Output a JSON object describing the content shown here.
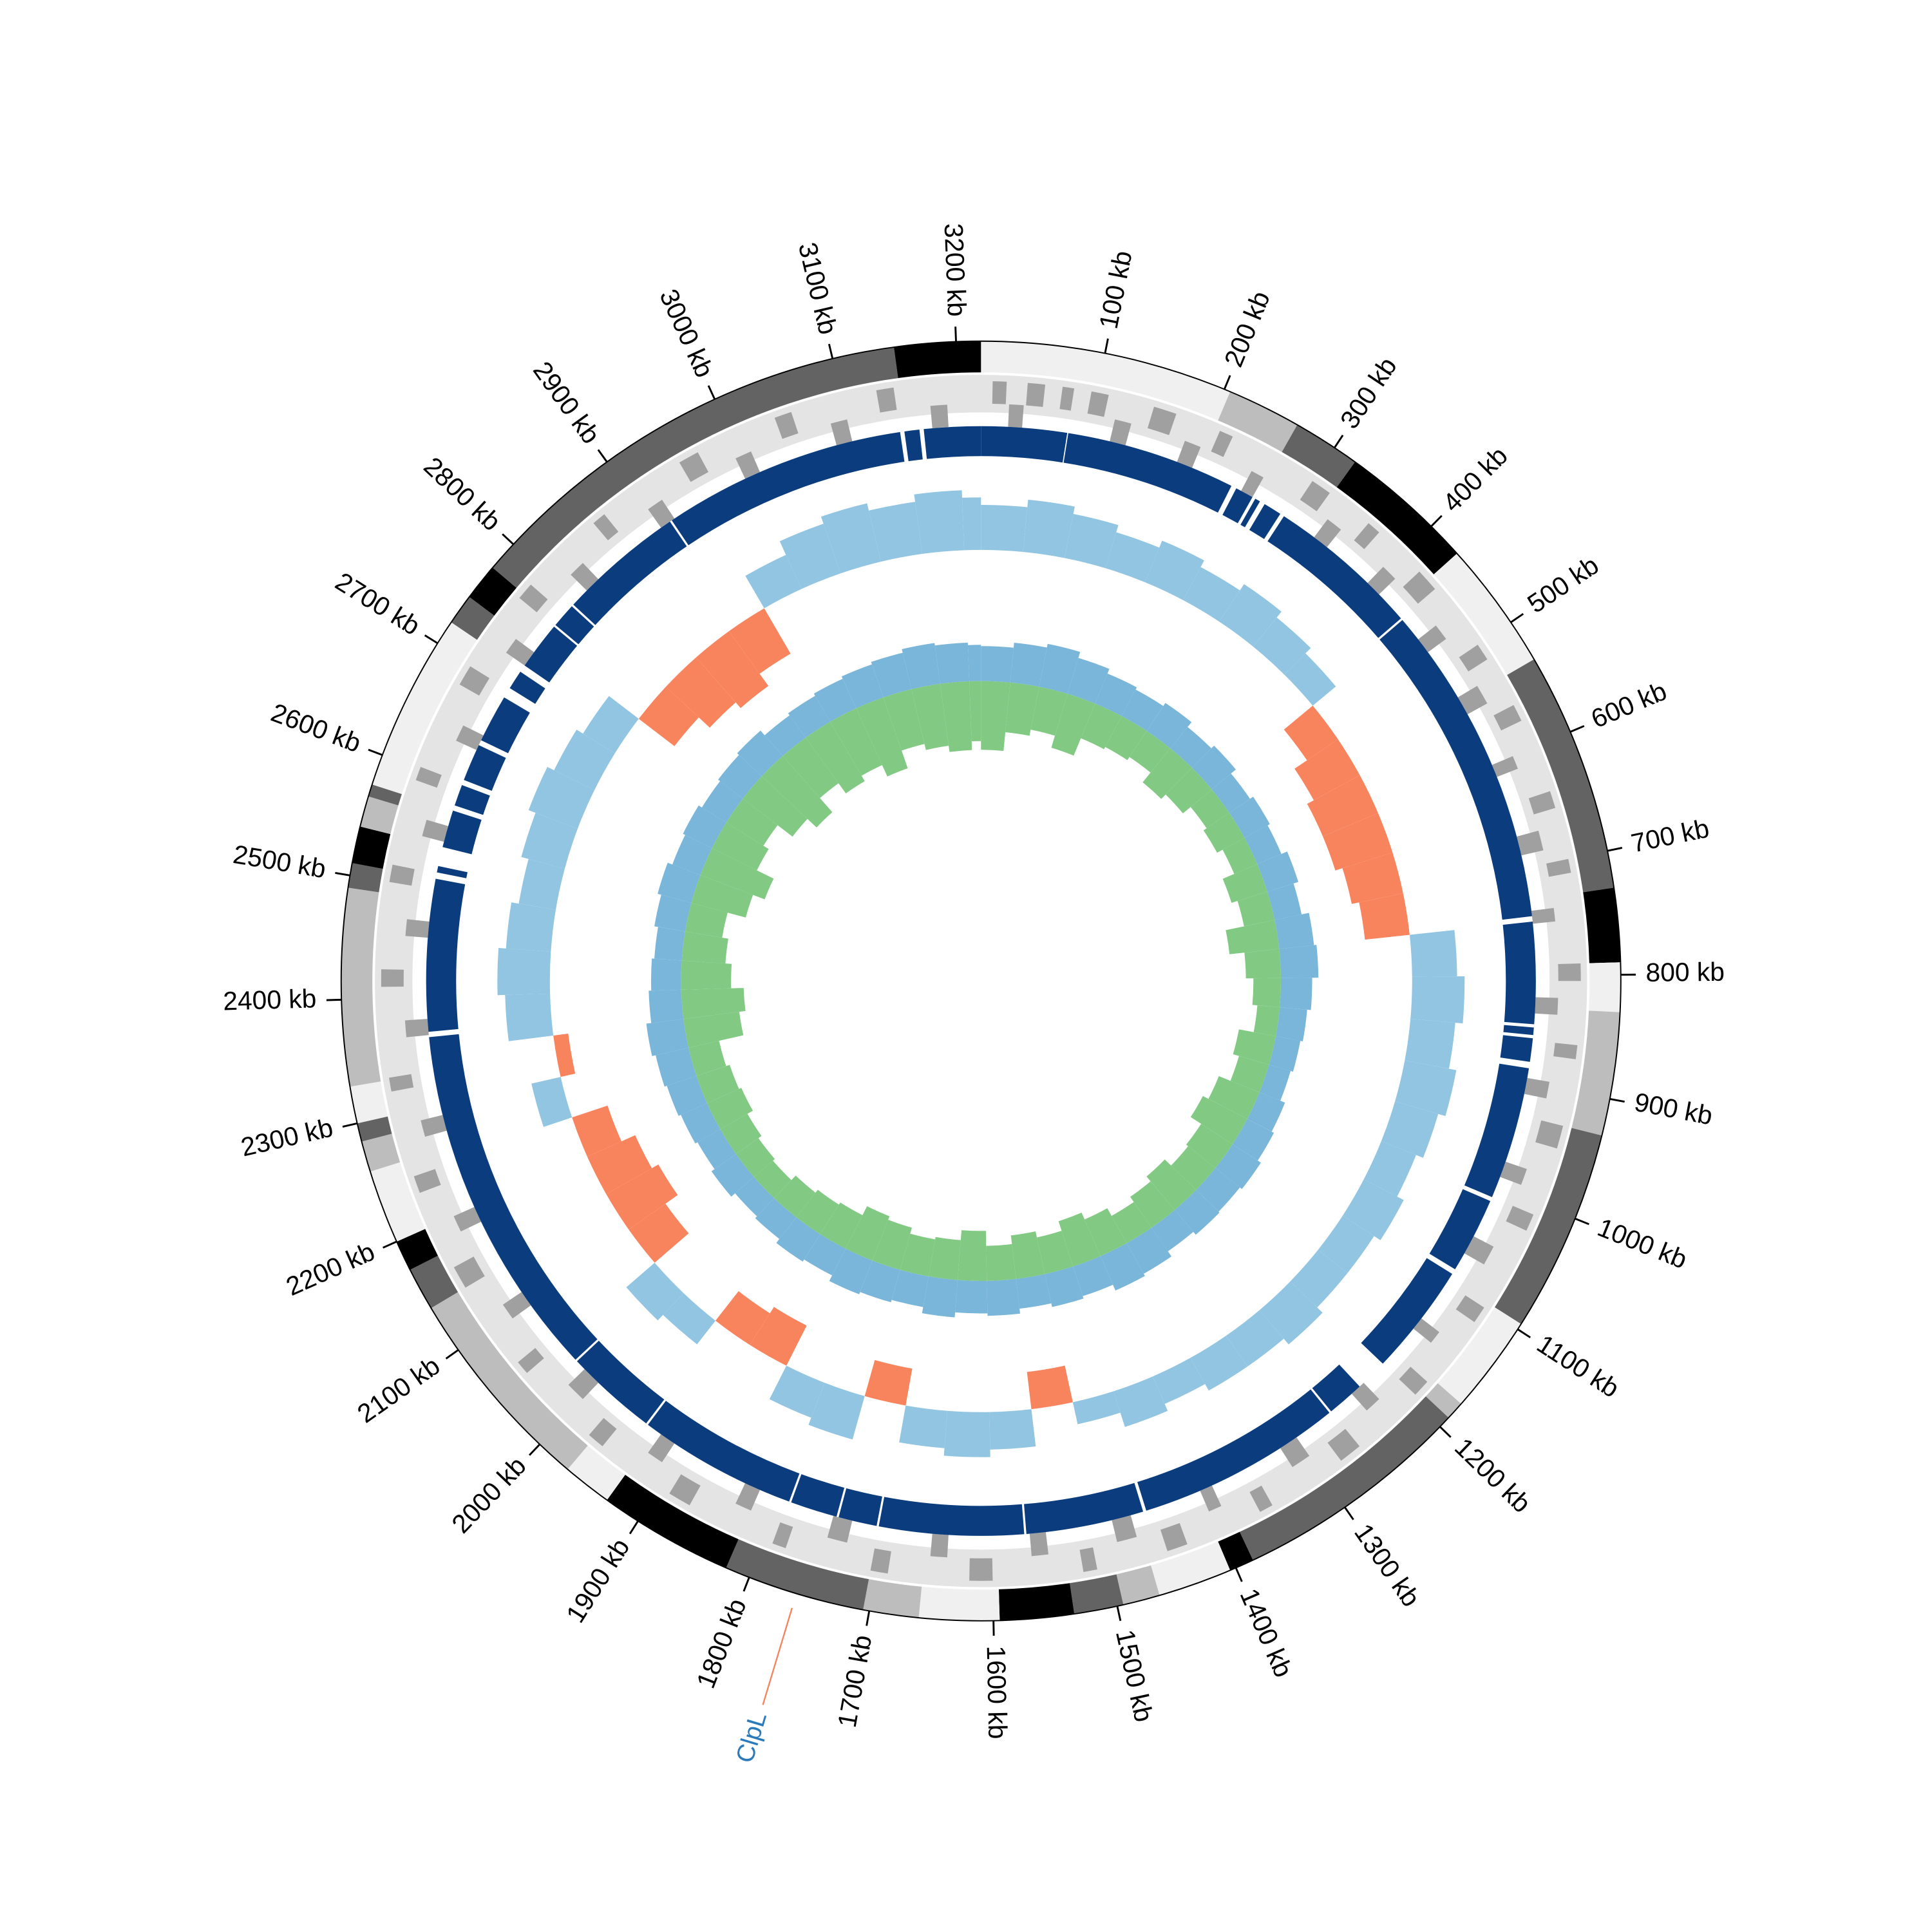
{
  "chart_data": {
    "type": "circos",
    "xlim": [
      0,
      3220
    ],
    "xticks": [
      {
        "value": 100,
        "label": "100 kb"
      },
      {
        "value": 200,
        "label": "200 kb"
      },
      {
        "value": 300,
        "label": "300 kb"
      },
      {
        "value": 400,
        "label": "400 kb"
      },
      {
        "value": 500,
        "label": "500 kb"
      },
      {
        "value": 600,
        "label": "600 kb"
      },
      {
        "value": 700,
        "label": "700 kb"
      },
      {
        "value": 800,
        "label": "800 kb"
      },
      {
        "value": 900,
        "label": "900 kb"
      },
      {
        "value": 1000,
        "label": "1000 kb"
      },
      {
        "value": 1100,
        "label": "1100 kb"
      },
      {
        "value": 1200,
        "label": "1200 kb"
      },
      {
        "value": 1300,
        "label": "1300 kb"
      },
      {
        "value": 1400,
        "label": "1400 kb"
      },
      {
        "value": 1500,
        "label": "1500 kb"
      },
      {
        "value": 1600,
        "label": "1600 kb"
      },
      {
        "value": 1700,
        "label": "1700 kb"
      },
      {
        "value": 1800,
        "label": "1800 kb"
      },
      {
        "value": 1900,
        "label": "1900 kb"
      },
      {
        "value": 2000,
        "label": "2000 kb"
      },
      {
        "value": 2100,
        "label": "2100 kb"
      },
      {
        "value": 2200,
        "label": "2200 kb"
      },
      {
        "value": 2300,
        "label": "2300 kb"
      },
      {
        "value": 2400,
        "label": "2400 kb"
      },
      {
        "value": 2500,
        "label": "2500 kb"
      },
      {
        "value": 2600,
        "label": "2600 kb"
      },
      {
        "value": 2700,
        "label": "2700 kb"
      },
      {
        "value": 2800,
        "label": "2800 kb"
      },
      {
        "value": 2900,
        "label": "2900 kb"
      },
      {
        "value": 3000,
        "label": "3000 kb"
      },
      {
        "value": 3100,
        "label": "3100 kb"
      },
      {
        "value": 3200,
        "label": "3200 kb"
      }
    ],
    "bands": [
      {
        "start": 0,
        "end": 205,
        "color": "#f0f0f0"
      },
      {
        "start": 205,
        "end": 265,
        "color": "#bdbdbd"
      },
      {
        "start": 265,
        "end": 320,
        "color": "#636363"
      },
      {
        "start": 320,
        "end": 430,
        "color": "#000000"
      },
      {
        "start": 430,
        "end": 535,
        "color": "#f0f0f0"
      },
      {
        "start": 535,
        "end": 730,
        "color": "#636363"
      },
      {
        "start": 730,
        "end": 790,
        "color": "#000000"
      },
      {
        "start": 790,
        "end": 830,
        "color": "#f0f0f0"
      },
      {
        "start": 830,
        "end": 930,
        "color": "#bdbdbd"
      },
      {
        "start": 930,
        "end": 1095,
        "color": "#636363"
      },
      {
        "start": 1095,
        "end": 1175,
        "color": "#f0f0f0"
      },
      {
        "start": 1175,
        "end": 1190,
        "color": "#bdbdbd"
      },
      {
        "start": 1190,
        "end": 1385,
        "color": "#636363"
      },
      {
        "start": 1385,
        "end": 1405,
        "color": "#000000"
      },
      {
        "start": 1405,
        "end": 1465,
        "color": "#f0f0f0"
      },
      {
        "start": 1465,
        "end": 1495,
        "color": "#bdbdbd"
      },
      {
        "start": 1495,
        "end": 1535,
        "color": "#636363"
      },
      {
        "start": 1535,
        "end": 1595,
        "color": "#000000"
      },
      {
        "start": 1595,
        "end": 1660,
        "color": "#f0f0f0"
      },
      {
        "start": 1660,
        "end": 1705,
        "color": "#bdbdbd"
      },
      {
        "start": 1705,
        "end": 1820,
        "color": "#636363"
      },
      {
        "start": 1820,
        "end": 1930,
        "color": "#000000"
      },
      {
        "start": 1930,
        "end": 1970,
        "color": "#f0f0f0"
      },
      {
        "start": 1970,
        "end": 2140,
        "color": "#bdbdbd"
      },
      {
        "start": 2140,
        "end": 2175,
        "color": "#636363"
      },
      {
        "start": 2175,
        "end": 2200,
        "color": "#000000"
      },
      {
        "start": 2200,
        "end": 2260,
        "color": "#f0f0f0"
      },
      {
        "start": 2260,
        "end": 2285,
        "color": "#bdbdbd"
      },
      {
        "start": 2285,
        "end": 2300,
        "color": "#636363"
      },
      {
        "start": 2300,
        "end": 2330,
        "color": "#f0f0f0"
      },
      {
        "start": 2330,
        "end": 2490,
        "color": "#bdbdbd"
      },
      {
        "start": 2490,
        "end": 2510,
        "color": "#636363"
      },
      {
        "start": 2510,
        "end": 2540,
        "color": "#000000"
      },
      {
        "start": 2540,
        "end": 2565,
        "color": "#bdbdbd"
      },
      {
        "start": 2565,
        "end": 2575,
        "color": "#636363"
      },
      {
        "start": 2575,
        "end": 2720,
        "color": "#f0f0f0"
      },
      {
        "start": 2720,
        "end": 2745,
        "color": "#636363"
      },
      {
        "start": 2745,
        "end": 2775,
        "color": "#000000"
      },
      {
        "start": 2775,
        "end": 3150,
        "color": "#636363"
      },
      {
        "start": 3150,
        "end": 3220,
        "color": "#000000"
      }
    ],
    "genes_forward": {
      "color": "#a0a0a0",
      "items": [
        [
          10,
          22
        ],
        [
          40,
          55
        ],
        [
          70,
          80
        ],
        [
          95,
          110
        ],
        [
          150,
          170
        ],
        [
          210,
          222
        ],
        [
          300,
          318
        ],
        [
          360,
          372
        ],
        [
          420,
          440
        ],
        [
          500,
          515
        ],
        [
          560,
          575
        ],
        [
          640,
          655
        ],
        [
          700,
          712
        ],
        [
          790,
          805
        ],
        [
          860,
          872
        ],
        [
          930,
          950
        ],
        [
          1010,
          1025
        ],
        [
          1100,
          1115
        ],
        [
          1180,
          1195
        ],
        [
          1260,
          1280
        ],
        [
          1350,
          1362
        ],
        [
          1430,
          1448
        ],
        [
          1510,
          1522
        ],
        [
          1600,
          1620
        ],
        [
          1690,
          1705
        ],
        [
          1780,
          1792
        ],
        [
          1870,
          1890
        ],
        [
          1960,
          1975
        ],
        [
          2050,
          2062
        ],
        [
          2140,
          2160
        ],
        [
          2230,
          2245
        ],
        [
          2320,
          2332
        ],
        [
          2410,
          2425
        ],
        [
          2500,
          2515
        ],
        [
          2590,
          2602
        ],
        [
          2680,
          2698
        ],
        [
          2770,
          2785
        ],
        [
          2860,
          2872
        ],
        [
          2950,
          2968
        ],
        [
          3040,
          3055
        ],
        [
          3130,
          3145
        ]
      ]
    },
    "genes_reverse": {
      "color": "#a0a0a0",
      "items": [
        [
          25,
          38
        ],
        [
          120,
          135
        ],
        [
          185,
          200
        ],
        [
          250,
          262
        ],
        [
          330,
          345
        ],
        [
          395,
          410
        ],
        [
          465,
          480
        ],
        [
          530,
          548
        ],
        [
          600,
          612
        ],
        [
          670,
          688
        ],
        [
          740,
          752
        ],
        [
          820,
          835
        ],
        [
          895,
          910
        ],
        [
          975,
          990
        ],
        [
          1050,
          1068
        ],
        [
          1140,
          1152
        ],
        [
          1220,
          1235
        ],
        [
          1300,
          1318
        ],
        [
          1390,
          1402
        ],
        [
          1470,
          1488
        ],
        [
          1550,
          1565
        ],
        [
          1640,
          1655
        ],
        [
          1730,
          1748
        ],
        [
          1820,
          1835
        ],
        [
          1910,
          1925
        ],
        [
          2000,
          2018
        ],
        [
          2095,
          2110
        ],
        [
          2185,
          2200
        ],
        [
          2275,
          2290
        ],
        [
          2365,
          2380
        ],
        [
          2455,
          2470
        ],
        [
          2545,
          2560
        ],
        [
          2635,
          2650
        ],
        [
          2725,
          2740
        ],
        [
          2815,
          2830
        ],
        [
          2905,
          2920
        ],
        [
          2995,
          3010
        ],
        [
          3085,
          3100
        ],
        [
          3175,
          3190
        ]
      ]
    },
    "segments": {
      "color": "#0b3d7e",
      "items": [
        [
          0,
          80
        ],
        [
          81,
          240
        ],
        [
          245,
          262
        ],
        [
          265,
          270
        ],
        [
          275,
          292
        ],
        [
          296,
          440
        ],
        [
          442,
          745
        ],
        [
          750,
          845
        ],
        [
          848,
          855
        ],
        [
          858,
          880
        ],
        [
          886,
          1010
        ],
        [
          1014,
          1085
        ],
        [
          1090,
          1195
        ],
        [
          1225,
          1260
        ],
        [
          1262,
          1455
        ],
        [
          1458,
          1568
        ],
        [
          1570,
          1705
        ],
        [
          1707,
          1743
        ],
        [
          1745,
          1789
        ],
        [
          1791,
          1940
        ],
        [
          1942,
          2028
        ],
        [
          2030,
          2363
        ],
        [
          2368,
          2510
        ],
        [
          2516,
          2522
        ],
        [
          2540,
          2575
        ],
        [
          2580,
          2600
        ],
        [
          2605,
          2640
        ],
        [
          2645,
          2690
        ],
        [
          2700,
          2718
        ],
        [
          2725,
          2770
        ],
        [
          2772,
          2795
        ],
        [
          2797,
          2915
        ],
        [
          2917,
          3145
        ],
        [
          3149,
          3163
        ],
        [
          3167,
          3220
        ]
      ]
    },
    "bins": [
      0,
      50,
      100,
      150,
      200,
      250,
      300,
      350,
      400,
      450,
      500,
      550,
      600,
      650,
      700,
      750,
      800,
      850,
      900,
      950,
      1000,
      1050,
      1100,
      1150,
      1200,
      1250,
      1300,
      1350,
      1400,
      1450,
      1500,
      1550,
      1600,
      1650,
      1700,
      1750,
      1800,
      1850,
      1900,
      1950,
      2000,
      2050,
      2100,
      2150,
      2200,
      2250,
      2300,
      2350,
      2400,
      2450,
      2500,
      2550,
      2600,
      2650,
      2700,
      2750,
      2800,
      2850,
      2900,
      2950,
      3000,
      3050,
      3100,
      3150,
      3200,
      3220
    ],
    "skew": {
      "ylim": [
        -0.1,
        0.1
      ],
      "color": "#92c5e2",
      "negative_color": "#f8845e",
      "values": [
        0.06,
        0.07,
        0.06,
        0.05,
        0.06,
        0.05,
        0.06,
        0.05,
        0.04,
        -0.05,
        -0.07,
        -0.08,
        -0.08,
        -0.07,
        -0.06,
        0.06,
        0.07,
        0.06,
        0.07,
        0.06,
        0.05,
        0.06,
        0.05,
        0.05,
        0.06,
        0.05,
        0.05,
        0.04,
        0.05,
        0.03,
        -0.05,
        0.05,
        0.06,
        0.05,
        -0.05,
        0.06,
        0.05,
        -0.06,
        -0.05,
        0.04,
        0.05,
        -0.06,
        -0.08,
        -0.07,
        -0.05,
        0.04,
        -0.02,
        0.06,
        0.07,
        0.06,
        0.05,
        0.06,
        0.07,
        0.06,
        0.05,
        -0.06,
        -0.08,
        -0.09,
        -0.07,
        0.05,
        0.07,
        0.08,
        0.07,
        0.08,
        0.07
      ]
    },
    "content": {
      "ylim": [
        -80,
        40
      ],
      "series": [
        {
          "color": "#6baed6",
          "values": [
            28,
            32,
            35,
            30,
            26,
            24,
            27,
            22,
            25,
            20,
            23,
            21,
            26,
            22,
            28,
            30,
            25,
            22,
            20,
            18,
            22,
            24,
            27,
            25,
            26,
            23,
            28,
            30,
            25,
            27,
            24,
            28,
            26,
            30,
            25,
            27,
            29,
            24,
            26,
            22,
            20,
            24,
            21,
            23,
            25,
            27,
            30,
            26,
            24,
            22,
            25,
            28,
            24,
            26,
            23,
            25,
            27,
            22,
            24,
            26,
            28,
            30,
            33,
            31,
            29
          ]
        },
        {
          "color": "#74c476",
          "values": [
            -55,
            -40,
            -35,
            -45,
            -30,
            -28,
            -25,
            -35,
            -30,
            -22,
            -25,
            -20,
            -30,
            -25,
            -40,
            -28,
            -22,
            -18,
            -30,
            -25,
            -35,
            -40,
            -30,
            -28,
            -35,
            -30,
            -25,
            -32,
            -38,
            -30,
            -35,
            -28,
            -40,
            -32,
            -30,
            -35,
            -38,
            -30,
            -28,
            -25,
            -20,
            -22,
            -25,
            -30,
            -28,
            -25,
            -45,
            -50,
            -40,
            -35,
            -30,
            -45,
            -55,
            -40,
            -35,
            -50,
            -60,
            -45,
            -55,
            -50,
            -60,
            -45,
            -50,
            -55,
            -48
          ]
        }
      ]
    },
    "annotations": [
      {
        "text": "ClpL",
        "position": 1760,
        "color": "#2b7bba",
        "line_color": "#f4845f"
      }
    ]
  }
}
